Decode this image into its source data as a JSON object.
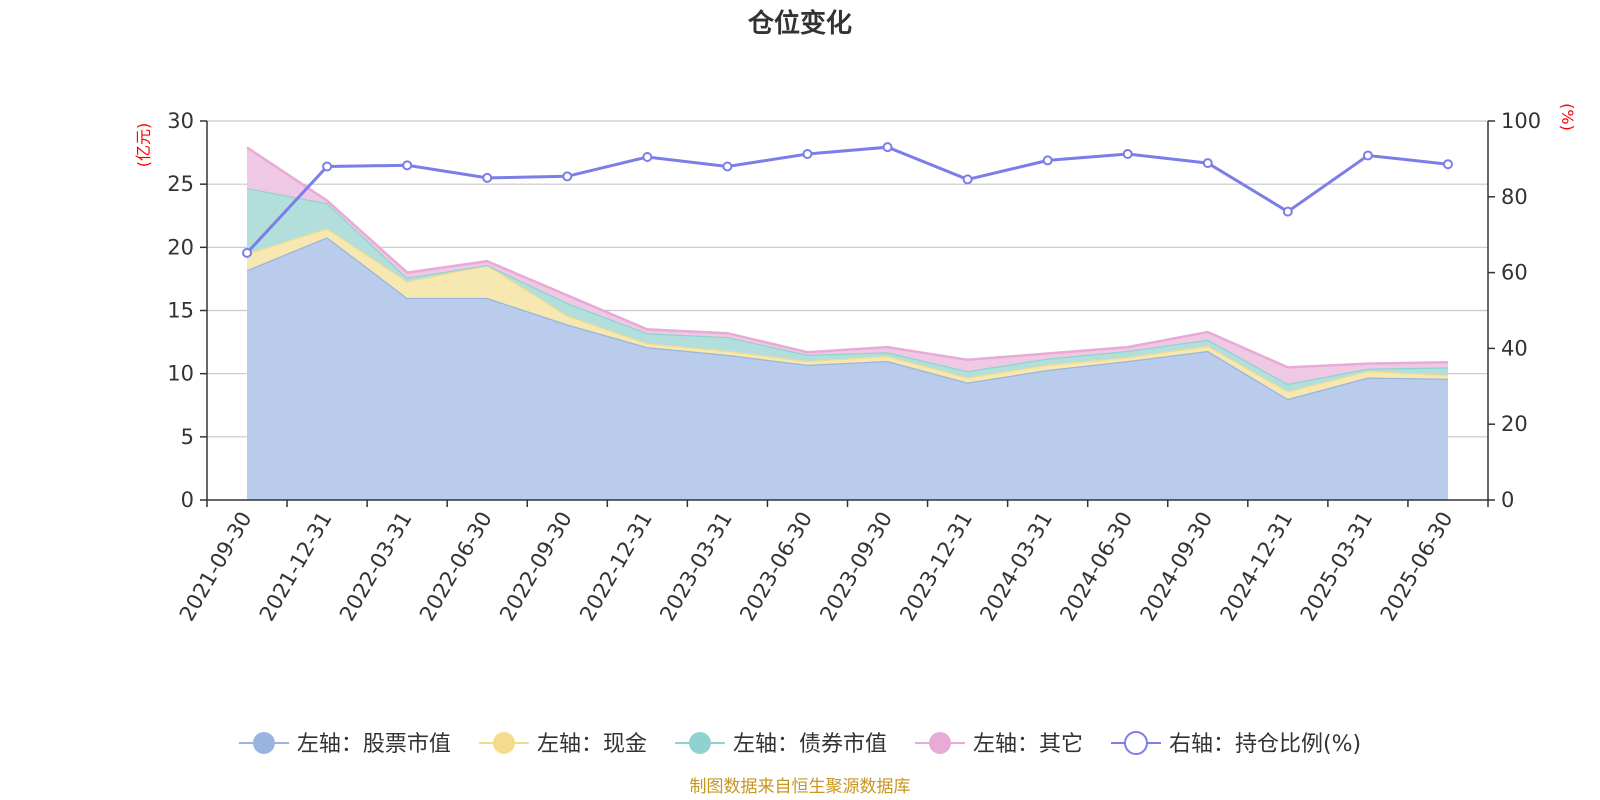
{
  "chart_data": {
    "type": "area",
    "title": "仓位变化",
    "left_axis_unit": "(亿元)",
    "right_axis_unit": "(%)",
    "categories": [
      "2021-09-30",
      "2021-12-31",
      "2022-03-31",
      "2022-06-30",
      "2022-09-30",
      "2022-12-31",
      "2023-03-31",
      "2023-06-30",
      "2023-09-30",
      "2023-12-31",
      "2024-03-31",
      "2024-06-30",
      "2024-09-30",
      "2024-12-31",
      "2025-03-31",
      "2025-06-30"
    ],
    "ylim_left": [
      0,
      30
    ],
    "yticks_left": [
      0,
      5,
      10,
      15,
      20,
      25,
      30
    ],
    "ylim_right": [
      0,
      100
    ],
    "yticks_right": [
      0,
      20,
      40,
      60,
      80,
      100
    ],
    "grid": true,
    "legend_position": "bottom",
    "series": [
      {
        "name": "左轴：股票市值",
        "axis": "left",
        "stack": true,
        "color": "#9ab4e0",
        "fill": "#b9cceb",
        "values": [
          18.2,
          20.8,
          16.0,
          16.0,
          13.9,
          12.1,
          11.5,
          10.7,
          11.0,
          9.3,
          10.3,
          11.0,
          11.8,
          8.0,
          9.7,
          9.6
        ]
      },
      {
        "name": "左轴：现金",
        "axis": "left",
        "stack": true,
        "color": "#f5dc8c",
        "fill": "#f7e7b0",
        "values": [
          1.3,
          0.7,
          1.3,
          2.6,
          0.7,
          0.3,
          0.3,
          0.3,
          0.4,
          0.4,
          0.4,
          0.3,
          0.4,
          0.6,
          0.5,
          0.3
        ]
      },
      {
        "name": "左轴：债券市值",
        "axis": "left",
        "stack": true,
        "color": "#8fd3d1",
        "fill": "#b2dfdc",
        "values": [
          5.2,
          2.0,
          0.3,
          0.0,
          1.0,
          0.8,
          1.1,
          0.5,
          0.3,
          0.5,
          0.5,
          0.5,
          0.5,
          0.6,
          0.2,
          0.6
        ]
      },
      {
        "name": "左轴：其它",
        "axis": "left",
        "stack": true,
        "color": "#e8aad6",
        "fill": "#efc9e3",
        "values": [
          3.2,
          0.2,
          0.4,
          0.3,
          0.6,
          0.3,
          0.3,
          0.2,
          0.4,
          0.9,
          0.4,
          0.3,
          0.6,
          1.3,
          0.4,
          0.4
        ]
      },
      {
        "name": "右轴：持仓比例(%)",
        "axis": "right",
        "stack": false,
        "color": "#7b7ee8",
        "values": [
          65.2,
          88.0,
          88.3,
          85.0,
          85.4,
          90.5,
          88.0,
          91.3,
          93.1,
          84.6,
          89.6,
          91.3,
          88.9,
          76.1,
          90.9,
          88.6
        ]
      }
    ],
    "source": "制图数据来自恒生聚源数据库"
  }
}
